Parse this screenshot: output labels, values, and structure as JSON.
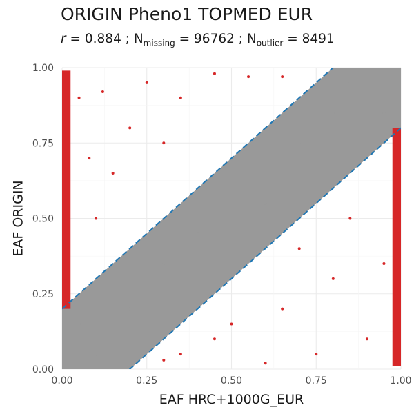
{
  "title": "ORIGIN Pheno1 TOPMED EUR",
  "subtitle": {
    "r_symbol": "r",
    "r_text": " = 0.884 ; N",
    "missing_sub": "missing",
    "missing_text": " = 96762 ; N",
    "outlier_sub": "outlier",
    "outlier_text": " = 8491"
  },
  "chart_data": {
    "type": "scatter",
    "xlabel": "EAF HRC+1000G_EUR",
    "ylabel": "EAF ORIGIN",
    "xlim": [
      0,
      1
    ],
    "ylim": [
      0,
      1
    ],
    "xticks": [
      "0.00",
      "0.25",
      "0.50",
      "0.75",
      "1.00"
    ],
    "yticks": [
      "0.00",
      "0.25",
      "0.50",
      "0.75",
      "1.00"
    ],
    "grid": true,
    "r": 0.884,
    "n_missing": 96762,
    "n_outlier": 8491,
    "colors": {
      "inlier": "#999999",
      "outlier": "#d62728",
      "reference_line": "#1f77b4"
    },
    "reference_lines": [
      {
        "slope": 1,
        "intercept": 0.2
      },
      {
        "slope": 1,
        "intercept": -0.2
      }
    ],
    "inlier_band": {
      "polygon": [
        [
          0,
          0
        ],
        [
          0.2,
          0
        ],
        [
          1,
          0.8
        ],
        [
          1,
          1
        ],
        [
          0.8,
          1
        ],
        [
          0,
          0.2
        ]
      ]
    },
    "outlier_points_sample": [
      [
        0.0,
        0.95
      ],
      [
        0.0,
        0.75
      ],
      [
        0.0,
        0.55
      ],
      [
        0.0,
        0.35
      ],
      [
        0.005,
        0.85
      ],
      [
        0.005,
        0.65
      ],
      [
        0.01,
        0.45
      ],
      [
        0.01,
        0.3
      ],
      [
        0.05,
        0.9
      ],
      [
        0.08,
        0.7
      ],
      [
        0.1,
        0.5
      ],
      [
        0.12,
        0.92
      ],
      [
        0.15,
        0.65
      ],
      [
        0.2,
        0.8
      ],
      [
        0.25,
        0.95
      ],
      [
        0.3,
        0.75
      ],
      [
        0.35,
        0.9
      ],
      [
        0.45,
        0.98
      ],
      [
        0.55,
        0.97
      ],
      [
        0.65,
        0.97
      ],
      [
        0.99,
        0.05
      ],
      [
        0.995,
        0.25
      ],
      [
        0.99,
        0.45
      ],
      [
        0.995,
        0.65
      ],
      [
        1.0,
        0.15
      ],
      [
        0.95,
        0.35
      ],
      [
        0.9,
        0.1
      ],
      [
        0.85,
        0.5
      ],
      [
        0.8,
        0.3
      ],
      [
        0.75,
        0.05
      ],
      [
        0.7,
        0.4
      ],
      [
        0.65,
        0.2
      ],
      [
        0.6,
        0.02
      ],
      [
        0.5,
        0.15
      ],
      [
        0.45,
        0.1
      ],
      [
        0.35,
        0.05
      ],
      [
        0.3,
        0.03
      ]
    ],
    "inlier_points_sample": [
      [
        0.0,
        0.0
      ],
      [
        0.0,
        0.1
      ],
      [
        0.05,
        0.15
      ],
      [
        0.1,
        0.05
      ],
      [
        0.2,
        0.2
      ],
      [
        0.3,
        0.35
      ],
      [
        0.4,
        0.45
      ],
      [
        0.5,
        0.5
      ],
      [
        0.6,
        0.55
      ],
      [
        0.7,
        0.75
      ],
      [
        0.8,
        0.85
      ],
      [
        0.9,
        0.9
      ],
      [
        1.0,
        1.0
      ],
      [
        0.95,
        0.85
      ],
      [
        0.85,
        0.95
      ]
    ]
  }
}
